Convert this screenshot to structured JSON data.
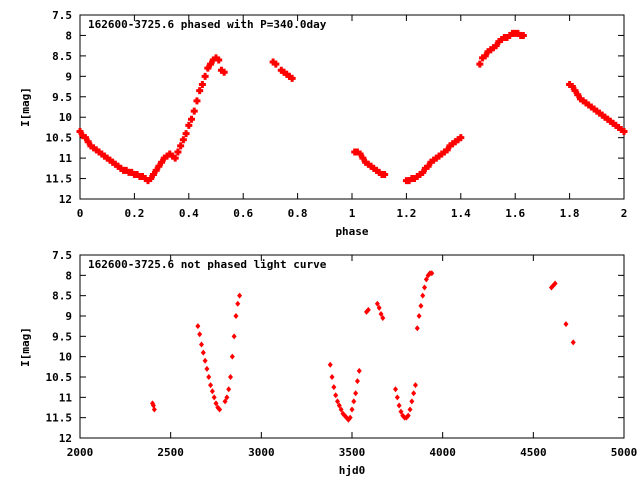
{
  "chart_data": [
    {
      "type": "scatter",
      "title": "162600-3725.6 phased with P=340.0day",
      "xlabel": "phase",
      "ylabel": "I[mag]",
      "xlim": [
        0,
        2
      ],
      "ylim": [
        7.5,
        12
      ],
      "y_inverted": true,
      "xticks": [
        0,
        0.2,
        0.4,
        0.6,
        0.8,
        1,
        1.2,
        1.4,
        1.6,
        1.8,
        2
      ],
      "xtick_labels": [
        "0",
        "0.2",
        "0.4",
        "0.6",
        "0.8",
        "1",
        "1.2",
        "1.4",
        "1.6",
        "1.8",
        "2"
      ],
      "yticks": [
        7.5,
        8,
        8.5,
        9,
        9.5,
        10,
        10.5,
        11,
        11.5,
        12
      ],
      "ytick_labels": [
        "7.5",
        "8",
        "8.5",
        "9",
        "9.5",
        "10",
        "10.5",
        "11",
        "11.5",
        "12"
      ],
      "grid": false,
      "marker_color": "#ff0000",
      "marker": "plus-bold",
      "series": [
        {
          "x": [
            0.0,
            0.01,
            0.02,
            0.03,
            0.04,
            0.05,
            0.06,
            0.07,
            0.08,
            0.09,
            0.1,
            0.11,
            0.12,
            0.13,
            0.14,
            0.15,
            0.16,
            0.17,
            0.18,
            0.19,
            0.2,
            0.21,
            0.22,
            0.23,
            0.24,
            0.25,
            0.26,
            0.27,
            0.28,
            0.29,
            0.3,
            0.31,
            0.32,
            0.33,
            0.34,
            0.35,
            0.36,
            0.37,
            0.38,
            0.39,
            0.4,
            0.41,
            0.42,
            0.43,
            0.44,
            0.45,
            0.46,
            0.47,
            0.48,
            0.49,
            0.5,
            0.51,
            0.52,
            0.53,
            0.71,
            0.72,
            0.74,
            0.75,
            0.76,
            0.77,
            0.78,
            1.01,
            1.02,
            1.03,
            1.04,
            1.05,
            1.06,
            1.07,
            1.08,
            1.09,
            1.1,
            1.11,
            1.12,
            1.2,
            1.21,
            1.22,
            1.23,
            1.24,
            1.25,
            1.26,
            1.27,
            1.28,
            1.29,
            1.3,
            1.31,
            1.32,
            1.33,
            1.34,
            1.35,
            1.36,
            1.37,
            1.38,
            1.39,
            1.4,
            1.47,
            1.48,
            1.49,
            1.5,
            1.51,
            1.52,
            1.53,
            1.54,
            1.55,
            1.56,
            1.57,
            1.58,
            1.59,
            1.6,
            1.61,
            1.62,
            1.63,
            1.8,
            1.81,
            1.82,
            1.83,
            1.84,
            1.85,
            1.86,
            1.87,
            1.88,
            1.89,
            1.9,
            1.91,
            1.92,
            1.93,
            1.94,
            1.95,
            1.96,
            1.97,
            1.98,
            1.99,
            2.0
          ],
          "y": [
            10.35,
            10.45,
            10.5,
            10.6,
            10.7,
            10.75,
            10.8,
            10.85,
            10.9,
            10.95,
            11.0,
            11.05,
            11.1,
            11.15,
            11.2,
            11.25,
            11.3,
            11.3,
            11.35,
            11.35,
            11.4,
            11.4,
            11.45,
            11.45,
            11.5,
            11.55,
            11.5,
            11.4,
            11.3,
            11.2,
            11.1,
            11.0,
            10.95,
            10.9,
            10.95,
            11.0,
            10.85,
            10.7,
            10.55,
            10.4,
            10.2,
            10.05,
            9.85,
            9.6,
            9.35,
            9.2,
            9.0,
            8.8,
            8.7,
            8.6,
            8.55,
            8.6,
            8.85,
            8.9,
            8.65,
            8.7,
            8.85,
            8.9,
            8.95,
            9.0,
            9.05,
            10.85,
            10.85,
            10.9,
            11.0,
            11.1,
            11.15,
            11.2,
            11.25,
            11.3,
            11.35,
            11.4,
            11.4,
            11.55,
            11.55,
            11.5,
            11.5,
            11.45,
            11.4,
            11.35,
            11.25,
            11.2,
            11.1,
            11.05,
            11.0,
            10.95,
            10.9,
            10.85,
            10.8,
            10.7,
            10.65,
            10.6,
            10.55,
            10.5,
            8.7,
            8.55,
            8.5,
            8.4,
            8.35,
            8.3,
            8.25,
            8.15,
            8.1,
            8.05,
            8.05,
            8.0,
            7.95,
            7.95,
            7.95,
            8.0,
            8.0,
            9.2,
            9.25,
            9.35,
            9.45,
            9.55,
            9.6,
            9.65,
            9.7,
            9.75,
            9.8,
            9.85,
            9.9,
            9.95,
            10.0,
            10.05,
            10.1,
            10.15,
            10.2,
            10.25,
            10.3,
            10.35
          ]
        }
      ]
    },
    {
      "type": "scatter",
      "title": "162600-3725.6 not phased light curve",
      "xlabel": "hjd0",
      "ylabel": "I[mag]",
      "xlim": [
        2000,
        5000
      ],
      "ylim": [
        7.5,
        12
      ],
      "y_inverted": true,
      "xticks": [
        2000,
        2500,
        3000,
        3500,
        4000,
        4500,
        5000
      ],
      "xtick_labels": [
        "2000",
        "2500",
        "3000",
        "3500",
        "4000",
        "4500",
        "5000"
      ],
      "yticks": [
        7.5,
        8,
        8.5,
        9,
        9.5,
        10,
        10.5,
        11,
        11.5,
        12
      ],
      "ytick_labels": [
        "7.5",
        "8",
        "8.5",
        "9",
        "9.5",
        "10",
        "10.5",
        "11",
        "11.5",
        "12"
      ],
      "grid": false,
      "marker_color": "#ff0000",
      "marker": "diamond",
      "series": [
        {
          "x": [
            2400,
            2405,
            2410,
            2650,
            2660,
            2670,
            2680,
            2690,
            2700,
            2710,
            2720,
            2730,
            2740,
            2750,
            2760,
            2770,
            2800,
            2810,
            2820,
            2830,
            2840,
            2850,
            2860,
            2870,
            2880,
            3380,
            3390,
            3400,
            3410,
            3420,
            3430,
            3440,
            3450,
            3460,
            3470,
            3480,
            3490,
            3500,
            3510,
            3520,
            3530,
            3540,
            3580,
            3590,
            3640,
            3650,
            3660,
            3670,
            3740,
            3750,
            3760,
            3770,
            3780,
            3790,
            3800,
            3810,
            3820,
            3830,
            3840,
            3850,
            3860,
            3870,
            3880,
            3890,
            3900,
            3910,
            3920,
            3930,
            3940,
            4600,
            4610,
            4620,
            4680,
            4720
          ],
          "y": [
            11.15,
            11.2,
            11.3,
            9.25,
            9.45,
            9.7,
            9.9,
            10.1,
            10.3,
            10.5,
            10.7,
            10.85,
            11.0,
            11.15,
            11.25,
            11.3,
            11.1,
            11.0,
            10.8,
            10.5,
            10.0,
            9.5,
            9.0,
            8.7,
            8.5,
            10.2,
            10.5,
            10.75,
            10.95,
            11.1,
            11.2,
            11.3,
            11.4,
            11.45,
            11.5,
            11.55,
            11.5,
            11.3,
            11.1,
            10.9,
            10.6,
            10.35,
            8.9,
            8.85,
            8.7,
            8.8,
            8.95,
            9.05,
            10.8,
            11.0,
            11.2,
            11.35,
            11.45,
            11.5,
            11.5,
            11.45,
            11.3,
            11.1,
            10.9,
            10.7,
            9.3,
            9.0,
            8.75,
            8.5,
            8.3,
            8.1,
            8.0,
            7.95,
            7.95,
            8.3,
            8.25,
            8.2,
            9.2,
            9.65
          ]
        }
      ]
    }
  ]
}
